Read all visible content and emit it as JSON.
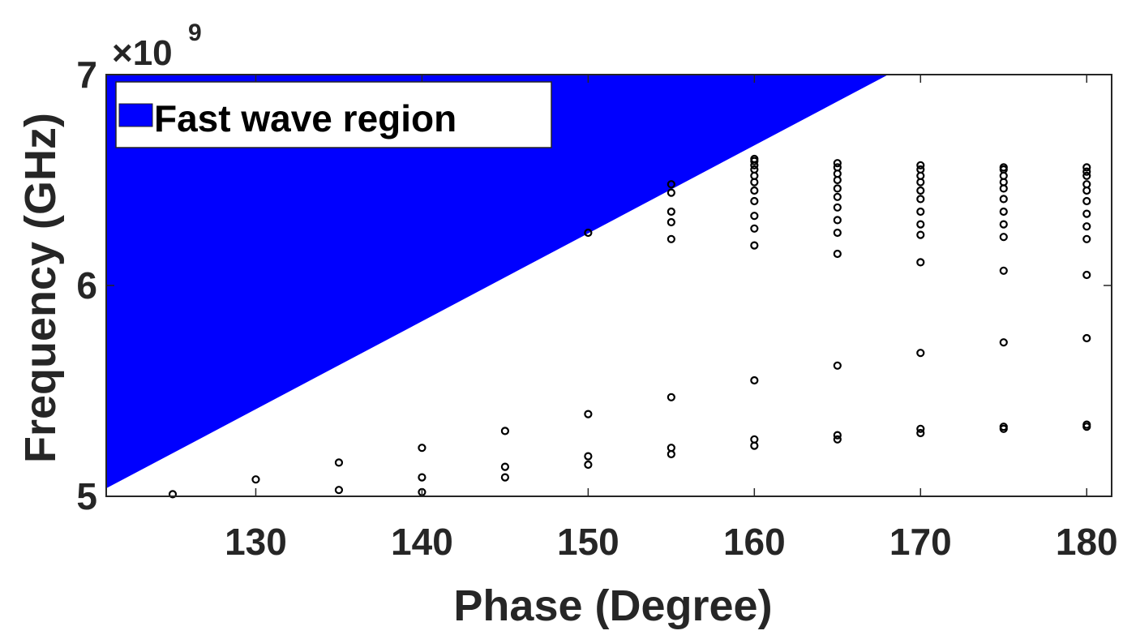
{
  "chart_data": {
    "type": "scatter",
    "title": "",
    "xlabel": "Phase (Degree)",
    "ylabel": "Frequency (GHz)",
    "y_multiplier": "×10",
    "y_multiplier_exp": "9",
    "xlim": [
      121,
      181.5
    ],
    "ylim": [
      5000000000,
      7000000000
    ],
    "xticks": [
      130,
      140,
      150,
      160,
      170,
      180
    ],
    "yticks": [
      5000000000,
      6000000000,
      7000000000
    ],
    "xtick_labels": [
      "130",
      "140",
      "150",
      "160",
      "170",
      "180"
    ],
    "ytick_labels": [
      "5",
      "6",
      "7"
    ],
    "grid": false,
    "legend": {
      "entries": [
        "Fast wave region"
      ],
      "position": "top-left"
    },
    "region": {
      "name": "Fast wave region",
      "color": "#0000ff",
      "boundary": [
        [
          121,
          5040000000
        ],
        [
          168,
          7000000000
        ]
      ]
    },
    "marker_color": "#000000",
    "points": [
      [
        125,
        5010000000
      ],
      [
        130,
        5080000000
      ],
      [
        135,
        5030000000
      ],
      [
        135,
        5160000000
      ],
      [
        140,
        5020000000
      ],
      [
        140,
        5090000000
      ],
      [
        140,
        5230000000
      ],
      [
        145,
        5090000000
      ],
      [
        145,
        5140000000
      ],
      [
        145,
        5310000000
      ],
      [
        150,
        5150000000
      ],
      [
        150,
        5190000000
      ],
      [
        150,
        5390000000
      ],
      [
        150,
        6250000000
      ],
      [
        155,
        5200000000
      ],
      [
        155,
        5230000000
      ],
      [
        155,
        5470000000
      ],
      [
        155,
        6220000000
      ],
      [
        155,
        6300000000
      ],
      [
        155,
        6350000000
      ],
      [
        155,
        6440000000
      ],
      [
        155,
        6480000000
      ],
      [
        160,
        5240000000
      ],
      [
        160,
        5270000000
      ],
      [
        160,
        5550000000
      ],
      [
        160,
        6190000000
      ],
      [
        160,
        6270000000
      ],
      [
        160,
        6330000000
      ],
      [
        160,
        6400000000
      ],
      [
        160,
        6450000000
      ],
      [
        160,
        6490000000
      ],
      [
        160,
        6520000000
      ],
      [
        160,
        6550000000
      ],
      [
        160,
        6570000000
      ],
      [
        160,
        6590000000
      ],
      [
        160,
        6600000000
      ],
      [
        165,
        5270000000
      ],
      [
        165,
        5290000000
      ],
      [
        165,
        5620000000
      ],
      [
        165,
        6150000000
      ],
      [
        165,
        6250000000
      ],
      [
        165,
        6310000000
      ],
      [
        165,
        6370000000
      ],
      [
        165,
        6420000000
      ],
      [
        165,
        6460000000
      ],
      [
        165,
        6500000000
      ],
      [
        165,
        6530000000
      ],
      [
        165,
        6560000000
      ],
      [
        165,
        6580000000
      ],
      [
        170,
        5300000000
      ],
      [
        170,
        5320000000
      ],
      [
        170,
        5680000000
      ],
      [
        170,
        6110000000
      ],
      [
        170,
        6240000000
      ],
      [
        170,
        6290000000
      ],
      [
        170,
        6350000000
      ],
      [
        170,
        6410000000
      ],
      [
        170,
        6450000000
      ],
      [
        170,
        6490000000
      ],
      [
        170,
        6520000000
      ],
      [
        170,
        6550000000
      ],
      [
        170,
        6570000000
      ],
      [
        175,
        5320000000
      ],
      [
        175,
        5330000000
      ],
      [
        175,
        5730000000
      ],
      [
        175,
        6070000000
      ],
      [
        175,
        6230000000
      ],
      [
        175,
        6290000000
      ],
      [
        175,
        6350000000
      ],
      [
        175,
        6410000000
      ],
      [
        175,
        6460000000
      ],
      [
        175,
        6490000000
      ],
      [
        175,
        6520000000
      ],
      [
        175,
        6550000000
      ],
      [
        175,
        6560000000
      ],
      [
        180,
        5330000000
      ],
      [
        180,
        5340000000
      ],
      [
        180,
        5750000000
      ],
      [
        180,
        6050000000
      ],
      [
        180,
        6220000000
      ],
      [
        180,
        6280000000
      ],
      [
        180,
        6340000000
      ],
      [
        180,
        6400000000
      ],
      [
        180,
        6450000000
      ],
      [
        180,
        6480000000
      ],
      [
        180,
        6520000000
      ],
      [
        180,
        6540000000
      ],
      [
        180,
        6560000000
      ]
    ]
  }
}
